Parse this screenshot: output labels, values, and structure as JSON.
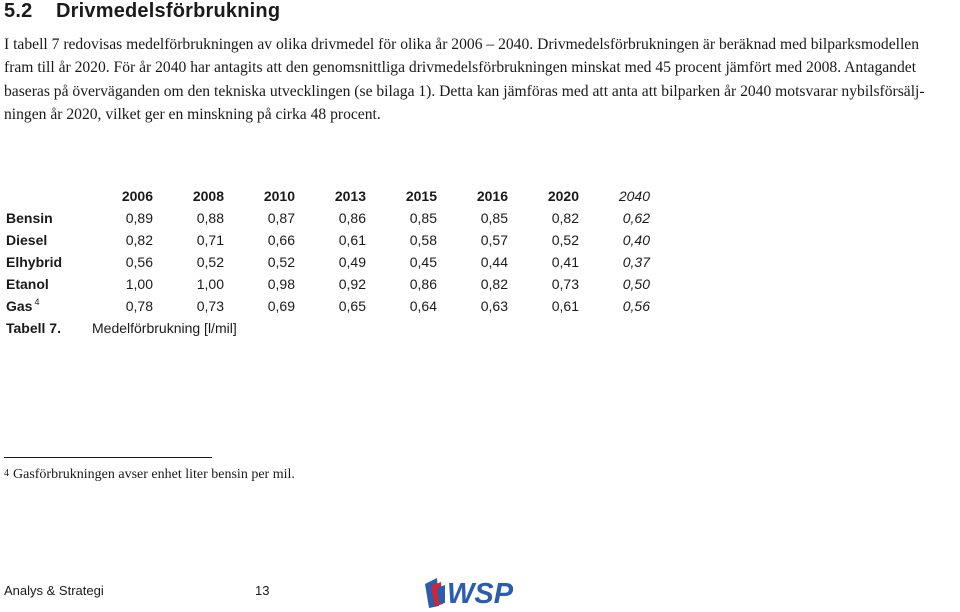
{
  "section": {
    "number": "5.2",
    "title": "Drivmedelsförbrukning"
  },
  "paragraph": {
    "lines": [
      "I tabell 7 redovisas medelförbrukningen av olika drivmedel för olika år 2006 – 2040. Drivmedelsförbrukningen är beräknad med bilparksmodellen",
      "fram till år 2020. För år 2040 har antagits att den genomsnittliga drivmedelsförbrukningen minskat med 45 procent jämfört med 2008. Antagandet",
      "baseras på överväganden om den tekniska utvecklingen (se bilaga 1). Detta kan jämföras med att anta att bilparken år 2040 motsvarar nybilsförsälj-",
      "ningen år 2020, vilket ger en minskning på cirka 48 procent."
    ]
  },
  "table": {
    "years": [
      "2006",
      "2008",
      "2010",
      "2013",
      "2015",
      "2016",
      "2020",
      "2040"
    ],
    "rows": [
      {
        "label": "Bensin",
        "ref": "",
        "values": [
          "0,89",
          "0,88",
          "0,87",
          "0,86",
          "0,85",
          "0,85",
          "0,82",
          "0,62"
        ]
      },
      {
        "label": "Diesel",
        "ref": "",
        "values": [
          "0,82",
          "0,71",
          "0,66",
          "0,61",
          "0,58",
          "0,57",
          "0,52",
          "0,40"
        ]
      },
      {
        "label": "Elhybrid",
        "ref": "",
        "values": [
          "0,56",
          "0,52",
          "0,52",
          "0,49",
          "0,45",
          "0,44",
          "0,41",
          "0,37"
        ]
      },
      {
        "label": "Etanol",
        "ref": "",
        "values": [
          "1,00",
          "1,00",
          "0,98",
          "0,92",
          "0,86",
          "0,82",
          "0,73",
          "0,50"
        ]
      },
      {
        "label": "Gas",
        "ref": "4",
        "values": [
          "0,78",
          "0,73",
          "0,69",
          "0,65",
          "0,64",
          "0,63",
          "0,61",
          "0,56"
        ]
      }
    ]
  },
  "caption": {
    "label": "Tabell 7.",
    "text": "Medelförbrukning [l/mil]"
  },
  "footnote": {
    "marker": "4",
    "text": "Gasförbrukningen avser enhet liter bensin per mil."
  },
  "footer": {
    "left": "Analys & Strategi",
    "page": "13"
  },
  "logo": {
    "text": "WSP",
    "colors": {
      "blue": "#2a5db0",
      "red": "#d8232a"
    }
  }
}
